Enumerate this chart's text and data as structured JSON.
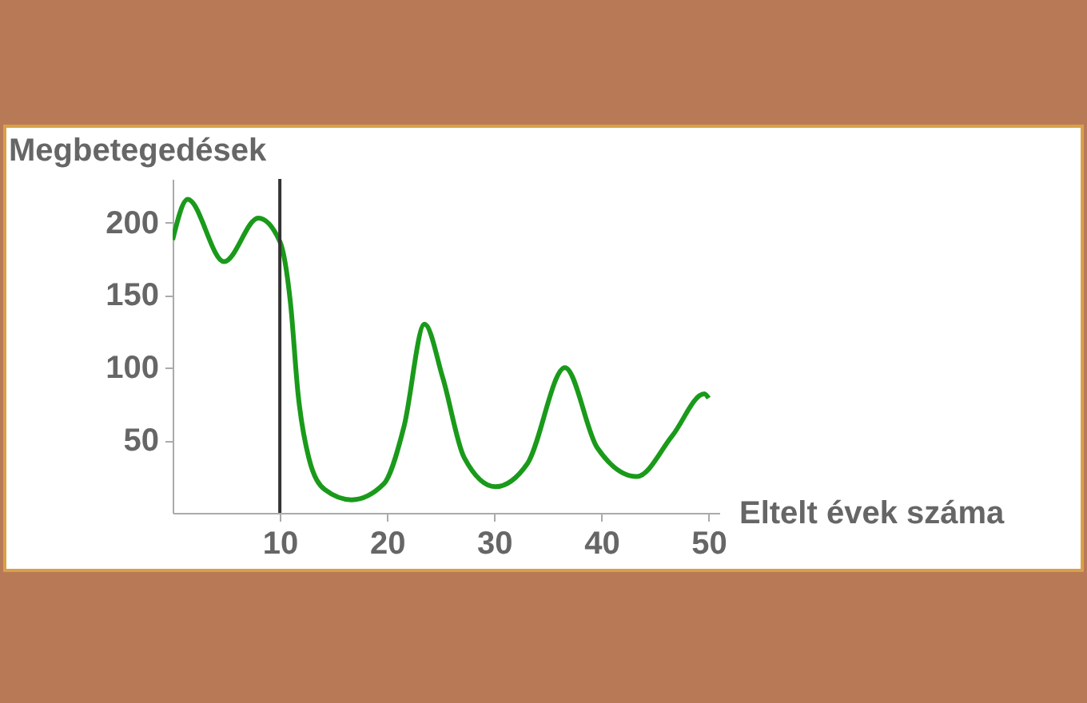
{
  "chart_data": {
    "type": "line",
    "xlabel": "Eltelt évek száma",
    "ylabel": "Megbetegedések",
    "x": [
      0,
      1.4,
      4.8,
      8.0,
      10.0,
      11.0,
      11.7,
      12.7,
      14.2,
      16.7,
      19.7,
      21.6,
      23.5,
      25.2,
      27.2,
      30.1,
      33.1,
      36.6,
      39.6,
      43.3,
      46.6,
      49.6,
      50
    ],
    "series": [
      {
        "color": "#1a9a1a",
        "values": [
          188,
          216,
          173,
          203,
          187,
          144,
          82,
          38,
          16,
          9,
          20,
          60,
          130,
          93,
          38,
          18,
          34,
          100,
          45,
          25,
          53,
          82,
          79
        ]
      }
    ],
    "xlim": [
      0,
      51
    ],
    "ylim": [
      0,
      230
    ],
    "xticks": [
      10,
      20,
      30,
      40,
      50
    ],
    "yticks": [
      50,
      100,
      150,
      200
    ],
    "ref_lines": [
      {
        "axis": "x",
        "value": 10,
        "color": "#333333"
      }
    ]
  }
}
